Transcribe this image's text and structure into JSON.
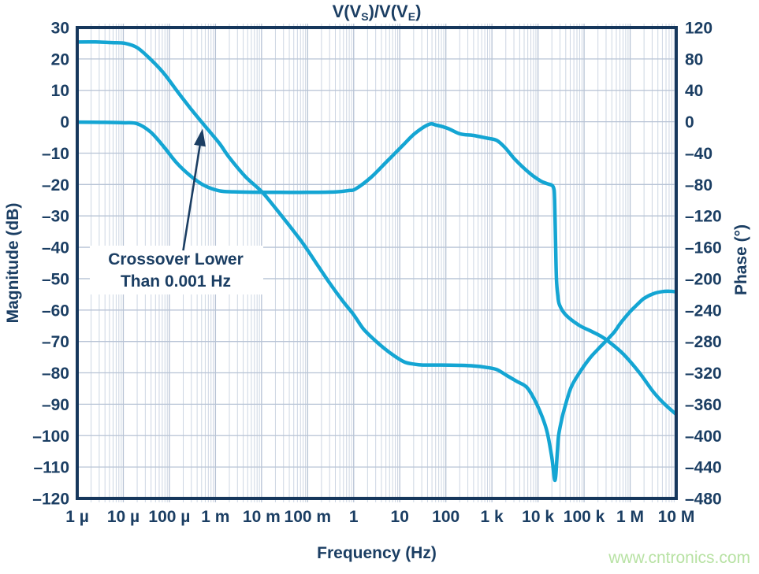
{
  "title": {
    "plain": "V(VS)/V(VE)",
    "segments": [
      {
        "t": "V(V"
      },
      {
        "t": "S",
        "sub": true
      },
      {
        "t": ")/V(V"
      },
      {
        "t": "E",
        "sub": true
      },
      {
        "t": ")"
      }
    ]
  },
  "watermark": "www.cntronics.com",
  "annotation": {
    "line1": "Crossover Lower",
    "line2": "Than 0.001 Hz"
  },
  "chart_data": {
    "type": "line",
    "title": "V(V_S)/V(V_E)",
    "xlabel": "Frequency (Hz)",
    "ylabel_left": "Magnitude (dB)",
    "ylabel_right": "Phase (°)",
    "x_scale": "log",
    "x_range_log10": [
      -6,
      7
    ],
    "x_tick_labels": [
      "1 µ",
      "10 µ",
      "100 µ",
      "1 m",
      "10 m",
      "100 m",
      "1",
      "10",
      "100",
      "1 k",
      "10 k",
      "100 k",
      "1 M",
      "10 M"
    ],
    "y_left": {
      "min": -120,
      "max": 30,
      "step": 10,
      "tick_labels": [
        "30",
        "20",
        "10",
        "0",
        "–10",
        "–20",
        "–30",
        "–40",
        "–50",
        "–60",
        "–70",
        "–80",
        "–90",
        "–100",
        "–110",
        "–120"
      ]
    },
    "y_right": {
      "min": -480,
      "max": 120,
      "step": 40,
      "tick_labels": [
        "120",
        "80",
        "40",
        "0",
        "–40",
        "–80",
        "–120",
        "–160",
        "–200",
        "–240",
        "–280",
        "–320",
        "–360",
        "–400",
        "–440",
        "–480"
      ]
    },
    "grid": true,
    "legend": "none",
    "series": [
      {
        "name": "Magnitude (dB)",
        "axis": "left",
        "points": [
          [
            -6,
            25.4
          ],
          [
            -5.6,
            25.4
          ],
          [
            -5.25,
            25.2
          ],
          [
            -4.97,
            25.0
          ],
          [
            -4.7,
            23.6
          ],
          [
            -4.41,
            19.9
          ],
          [
            -4.12,
            15.4
          ],
          [
            -3.84,
            9.9
          ],
          [
            -3.55,
            4.4
          ],
          [
            -3.26,
            -0.8
          ],
          [
            -2.92,
            -6.8
          ],
          [
            -2.7,
            -11.4
          ],
          [
            -2.35,
            -17.5
          ],
          [
            -2.0,
            -22.2
          ],
          [
            -1.7,
            -27.5
          ],
          [
            -1.38,
            -33.4
          ],
          [
            -1.1,
            -38.8
          ],
          [
            -0.82,
            -44.9
          ],
          [
            -0.55,
            -50.8
          ],
          [
            -0.26,
            -56.7
          ],
          [
            0,
            -61.5
          ],
          [
            0.21,
            -66
          ],
          [
            0.45,
            -69.5
          ],
          [
            0.67,
            -72.3
          ],
          [
            0.9,
            -74.8
          ],
          [
            1.11,
            -76.6
          ],
          [
            1.3,
            -77.2
          ],
          [
            1.5,
            -77.5
          ],
          [
            1.9,
            -77.5
          ],
          [
            2.3,
            -77.6
          ],
          [
            2.6,
            -77.8
          ],
          [
            2.9,
            -78.3
          ],
          [
            3.11,
            -79
          ],
          [
            3.34,
            -81
          ],
          [
            3.55,
            -82.8
          ],
          [
            3.75,
            -84.5
          ],
          [
            3.92,
            -88.4
          ],
          [
            4.09,
            -94
          ],
          [
            4.2,
            -99
          ],
          [
            4.3,
            -107
          ],
          [
            4.37,
            -114.2
          ],
          [
            4.42,
            -105
          ],
          [
            4.45,
            -99.7
          ],
          [
            4.52,
            -94.5
          ],
          [
            4.57,
            -91.6
          ],
          [
            4.71,
            -84.9
          ],
          [
            4.88,
            -80.4
          ],
          [
            5.12,
            -75.4
          ],
          [
            5.3,
            -72.5
          ],
          [
            5.47,
            -69.9
          ],
          [
            5.65,
            -67.1
          ],
          [
            5.8,
            -64
          ],
          [
            6,
            -60.5
          ],
          [
            6.15,
            -58.3
          ],
          [
            6.3,
            -56.3
          ],
          [
            6.5,
            -54.8
          ],
          [
            6.7,
            -54.1
          ],
          [
            6.85,
            -54
          ],
          [
            7,
            -54.2
          ]
        ]
      },
      {
        "name": "Phase (°)",
        "axis": "right",
        "points": [
          [
            -6,
            -0.5
          ],
          [
            -5.4,
            -0.8
          ],
          [
            -5,
            -1.3
          ],
          [
            -4.7,
            -2.5
          ],
          [
            -4.41,
            -13
          ],
          [
            -4.12,
            -32
          ],
          [
            -3.84,
            -52.6
          ],
          [
            -3.55,
            -68.6
          ],
          [
            -3.26,
            -80.7
          ],
          [
            -2.92,
            -88
          ],
          [
            -2.6,
            -89.3
          ],
          [
            -2.2,
            -89.8
          ],
          [
            -1.6,
            -90
          ],
          [
            -1,
            -90
          ],
          [
            -0.4,
            -89.4
          ],
          [
            -0.1,
            -87.6
          ],
          [
            0.04,
            -85.7
          ],
          [
            0.38,
            -70.6
          ],
          [
            0.72,
            -50.6
          ],
          [
            1.06,
            -30.5
          ],
          [
            1.32,
            -15.4
          ],
          [
            1.63,
            -3.4
          ],
          [
            1.8,
            -4.4
          ],
          [
            2.04,
            -8.4
          ],
          [
            2.31,
            -15.5
          ],
          [
            2.6,
            -17.5
          ],
          [
            2.9,
            -21
          ],
          [
            3.11,
            -24
          ],
          [
            3.3,
            -34
          ],
          [
            3.5,
            -48
          ],
          [
            3.82,
            -65.6
          ],
          [
            4.06,
            -75.6
          ],
          [
            4.2,
            -79
          ],
          [
            4.33,
            -83
          ],
          [
            4.36,
            -100
          ],
          [
            4.38,
            -150
          ],
          [
            4.4,
            -200
          ],
          [
            4.43,
            -222
          ],
          [
            4.47,
            -234
          ],
          [
            4.6,
            -246
          ],
          [
            4.88,
            -259
          ],
          [
            5.12,
            -266
          ],
          [
            5.34,
            -272.5
          ],
          [
            5.51,
            -279
          ],
          [
            5.85,
            -296
          ],
          [
            6.19,
            -319
          ],
          [
            6.5,
            -344
          ],
          [
            6.75,
            -360
          ],
          [
            7,
            -373
          ]
        ]
      }
    ],
    "annotations": [
      {
        "text": [
          "Crossover Lower",
          "Than 0.001 Hz"
        ],
        "arrow_from": [
          -3.7,
          -41.0
        ],
        "arrow_to": [
          -3.28,
          -2.2
        ],
        "arrow_axis": "left"
      }
    ],
    "colors": {
      "curve": "#14a5d3",
      "text": "#1b3e63",
      "grid_minor": "#cdd6e3",
      "grid_major": "#b7c3d5",
      "border": "#16375c",
      "watermark": "#b8e2a4",
      "background": "#ffffff"
    }
  }
}
